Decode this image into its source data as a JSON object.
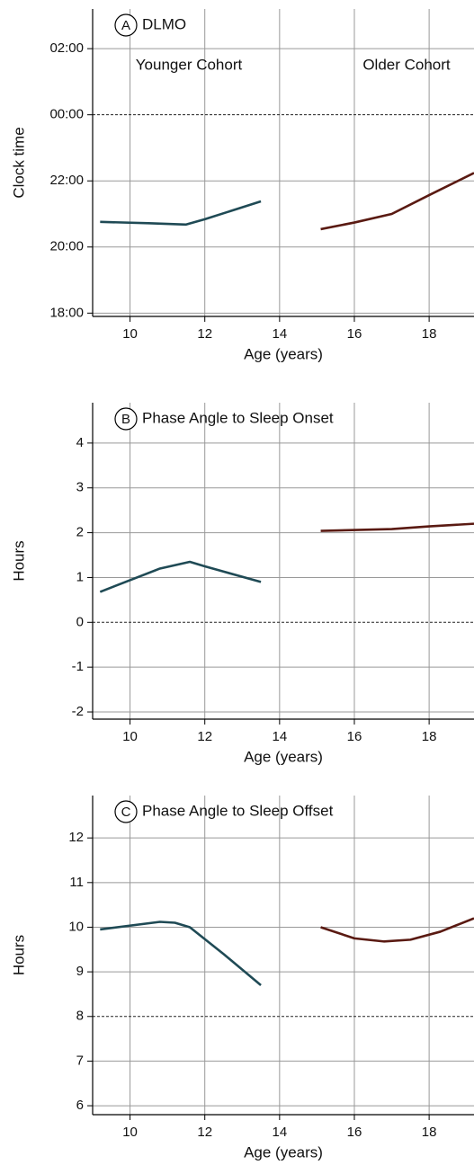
{
  "chart_data": [
    {
      "type": "line",
      "panel": "A",
      "title": "DLMO",
      "x_label": "Age (years)",
      "y_label": "Clock time",
      "annotations": [
        "Younger Cohort",
        "Older Cohort"
      ],
      "xlim": [
        9,
        19.2
      ],
      "xticks": [
        10,
        12,
        14,
        16,
        18
      ],
      "ylim": [
        17.9,
        27.2
      ],
      "yticks": [
        {
          "value": 18,
          "label": "18:00"
        },
        {
          "value": 20,
          "label": "20:00"
        },
        {
          "value": 22,
          "label": "22:00"
        },
        {
          "value": 24,
          "label": "00:00"
        },
        {
          "value": 26,
          "label": "02:00"
        }
      ],
      "reference_line": 24,
      "grid": true,
      "series": [
        {
          "color": "#1f4a55",
          "x": [
            9.2,
            10.5,
            11.5,
            12,
            13.5
          ],
          "values": [
            20.76,
            20.72,
            20.68,
            20.84,
            21.38
          ]
        },
        {
          "color": "#5a1a12",
          "x": [
            15.1,
            16,
            17,
            18,
            19.2
          ],
          "values": [
            20.54,
            20.74,
            21.0,
            21.57,
            22.24
          ]
        }
      ]
    },
    {
      "type": "line",
      "panel": "B",
      "title": "Phase Angle to Sleep Onset",
      "x_label": "Age (years)",
      "y_label": "Hours",
      "xlim": [
        9,
        19.2
      ],
      "xticks": [
        10,
        12,
        14,
        16,
        18
      ],
      "ylim": [
        -2.16,
        4.9
      ],
      "yticks": [
        -2,
        -1,
        0,
        1,
        2,
        3,
        4
      ],
      "reference_line": 0,
      "grid": true,
      "series": [
        {
          "color": "#1f4a55",
          "x": [
            9.2,
            10.8,
            11.6,
            12,
            13.5
          ],
          "values": [
            0.68,
            1.2,
            1.35,
            1.25,
            0.9
          ]
        },
        {
          "color": "#5a1a12",
          "x": [
            15.1,
            17,
            18,
            19.2
          ],
          "values": [
            2.04,
            2.08,
            2.14,
            2.2
          ]
        }
      ]
    },
    {
      "type": "line",
      "panel": "C",
      "title": "Phase Angle to Sleep Offset",
      "x_label": "Age (years)",
      "y_label": "Hours",
      "xlim": [
        9,
        19.2
      ],
      "xticks": [
        10,
        12,
        14,
        16,
        18
      ],
      "ylim": [
        5.8,
        12.95
      ],
      "yticks": [
        6,
        7,
        8,
        9,
        10,
        11,
        12
      ],
      "reference_line": 8,
      "grid": true,
      "series": [
        {
          "color": "#1f4a55",
          "x": [
            9.2,
            10.8,
            11.2,
            11.6,
            12.5,
            13.5
          ],
          "values": [
            9.95,
            10.12,
            10.1,
            10.0,
            9.4,
            8.7
          ]
        },
        {
          "color": "#5a1a12",
          "x": [
            15.1,
            16,
            16.8,
            17.5,
            18.3,
            19.2
          ],
          "values": [
            10.0,
            9.75,
            9.68,
            9.72,
            9.9,
            10.2
          ]
        }
      ]
    }
  ]
}
